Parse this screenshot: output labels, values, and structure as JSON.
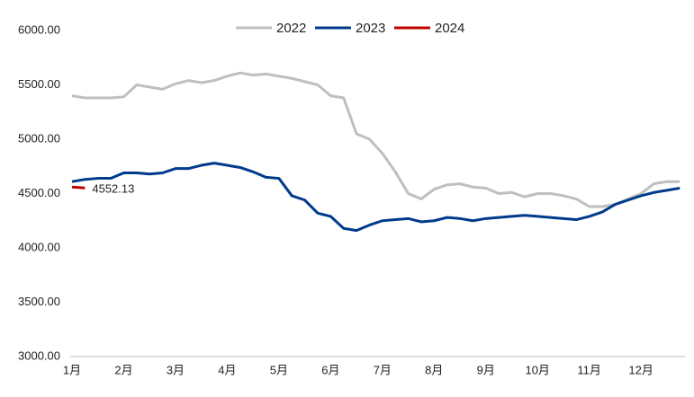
{
  "chart_data": {
    "type": "line",
    "x": [
      0,
      0.25,
      0.5,
      0.75,
      1,
      1.25,
      1.5,
      1.75,
      2,
      2.25,
      2.5,
      2.75,
      3,
      3.25,
      3.5,
      3.75,
      4,
      4.25,
      4.5,
      4.75,
      5,
      5.25,
      5.5,
      5.75,
      6,
      6.25,
      6.5,
      6.75,
      7,
      7.25,
      7.5,
      7.75,
      8,
      8.25,
      8.5,
      8.75,
      9,
      9.25,
      9.5,
      9.75,
      10,
      10.25,
      10.5,
      10.75,
      11,
      11.25,
      11.5,
      11.75
    ],
    "series": [
      {
        "name": "2022",
        "color": "#bfbfbf",
        "values": [
          5400,
          5380,
          5380,
          5380,
          5390,
          5500,
          5480,
          5460,
          5510,
          5540,
          5520,
          5540,
          5580,
          5610,
          5590,
          5600,
          5580,
          5560,
          5530,
          5500,
          5400,
          5380,
          5050,
          5000,
          4870,
          4700,
          4500,
          4450,
          4540,
          4580,
          4590,
          4560,
          4550,
          4500,
          4510,
          4470,
          4500,
          4500,
          4480,
          4450,
          4380,
          4380,
          4400,
          4450,
          4500,
          4590,
          4610,
          4610
        ]
      },
      {
        "name": "2023",
        "color": "#003a8c",
        "values": [
          4610,
          4630,
          4640,
          4640,
          4690,
          4690,
          4680,
          4690,
          4730,
          4730,
          4760,
          4780,
          4760,
          4740,
          4700,
          4650,
          4640,
          4480,
          4440,
          4320,
          4290,
          4180,
          4160,
          4210,
          4250,
          4260,
          4270,
          4240,
          4250,
          4280,
          4270,
          4250,
          4270,
          4280,
          4290,
          4300,
          4290,
          4280,
          4270,
          4260,
          4290,
          4330,
          4400,
          4440,
          4480,
          4510,
          4530,
          4550
        ]
      },
      {
        "name": "2024",
        "color": "#c00000",
        "show_last_label": true,
        "values": [
          4560,
          4552.13,
          null,
          null,
          null,
          null,
          null,
          null,
          null,
          null,
          null,
          null,
          null,
          null,
          null,
          null,
          null,
          null,
          null,
          null,
          null,
          null,
          null,
          null,
          null,
          null,
          null,
          null,
          null,
          null,
          null,
          null,
          null,
          null,
          null,
          null,
          null,
          null,
          null,
          null,
          null,
          null,
          null,
          null,
          null,
          null,
          null,
          null
        ]
      }
    ],
    "xlim": [
      0,
      11.85
    ],
    "xticks": [
      {
        "value": 0,
        "label": "1月"
      },
      {
        "value": 1,
        "label": "2月"
      },
      {
        "value": 2,
        "label": "3月"
      },
      {
        "value": 3,
        "label": "4月"
      },
      {
        "value": 4,
        "label": "5月"
      },
      {
        "value": 5,
        "label": "6月"
      },
      {
        "value": 6,
        "label": "7月"
      },
      {
        "value": 7,
        "label": "8月"
      },
      {
        "value": 8,
        "label": "9月"
      },
      {
        "value": 9,
        "label": "10月"
      },
      {
        "value": 10,
        "label": "11月"
      },
      {
        "value": 11,
        "label": "12月"
      }
    ],
    "ylim": [
      3000,
      6000
    ],
    "yticks": [
      {
        "value": 3000,
        "label": "3000.00"
      },
      {
        "value": 3500,
        "label": "3500.00"
      },
      {
        "value": 4000,
        "label": "4000.00"
      },
      {
        "value": 4500,
        "label": "4500.00"
      },
      {
        "value": 5000,
        "label": "5000.00"
      },
      {
        "value": 5500,
        "label": "5500.00"
      },
      {
        "value": 6000,
        "label": "6000.00"
      }
    ],
    "legend": "top"
  }
}
